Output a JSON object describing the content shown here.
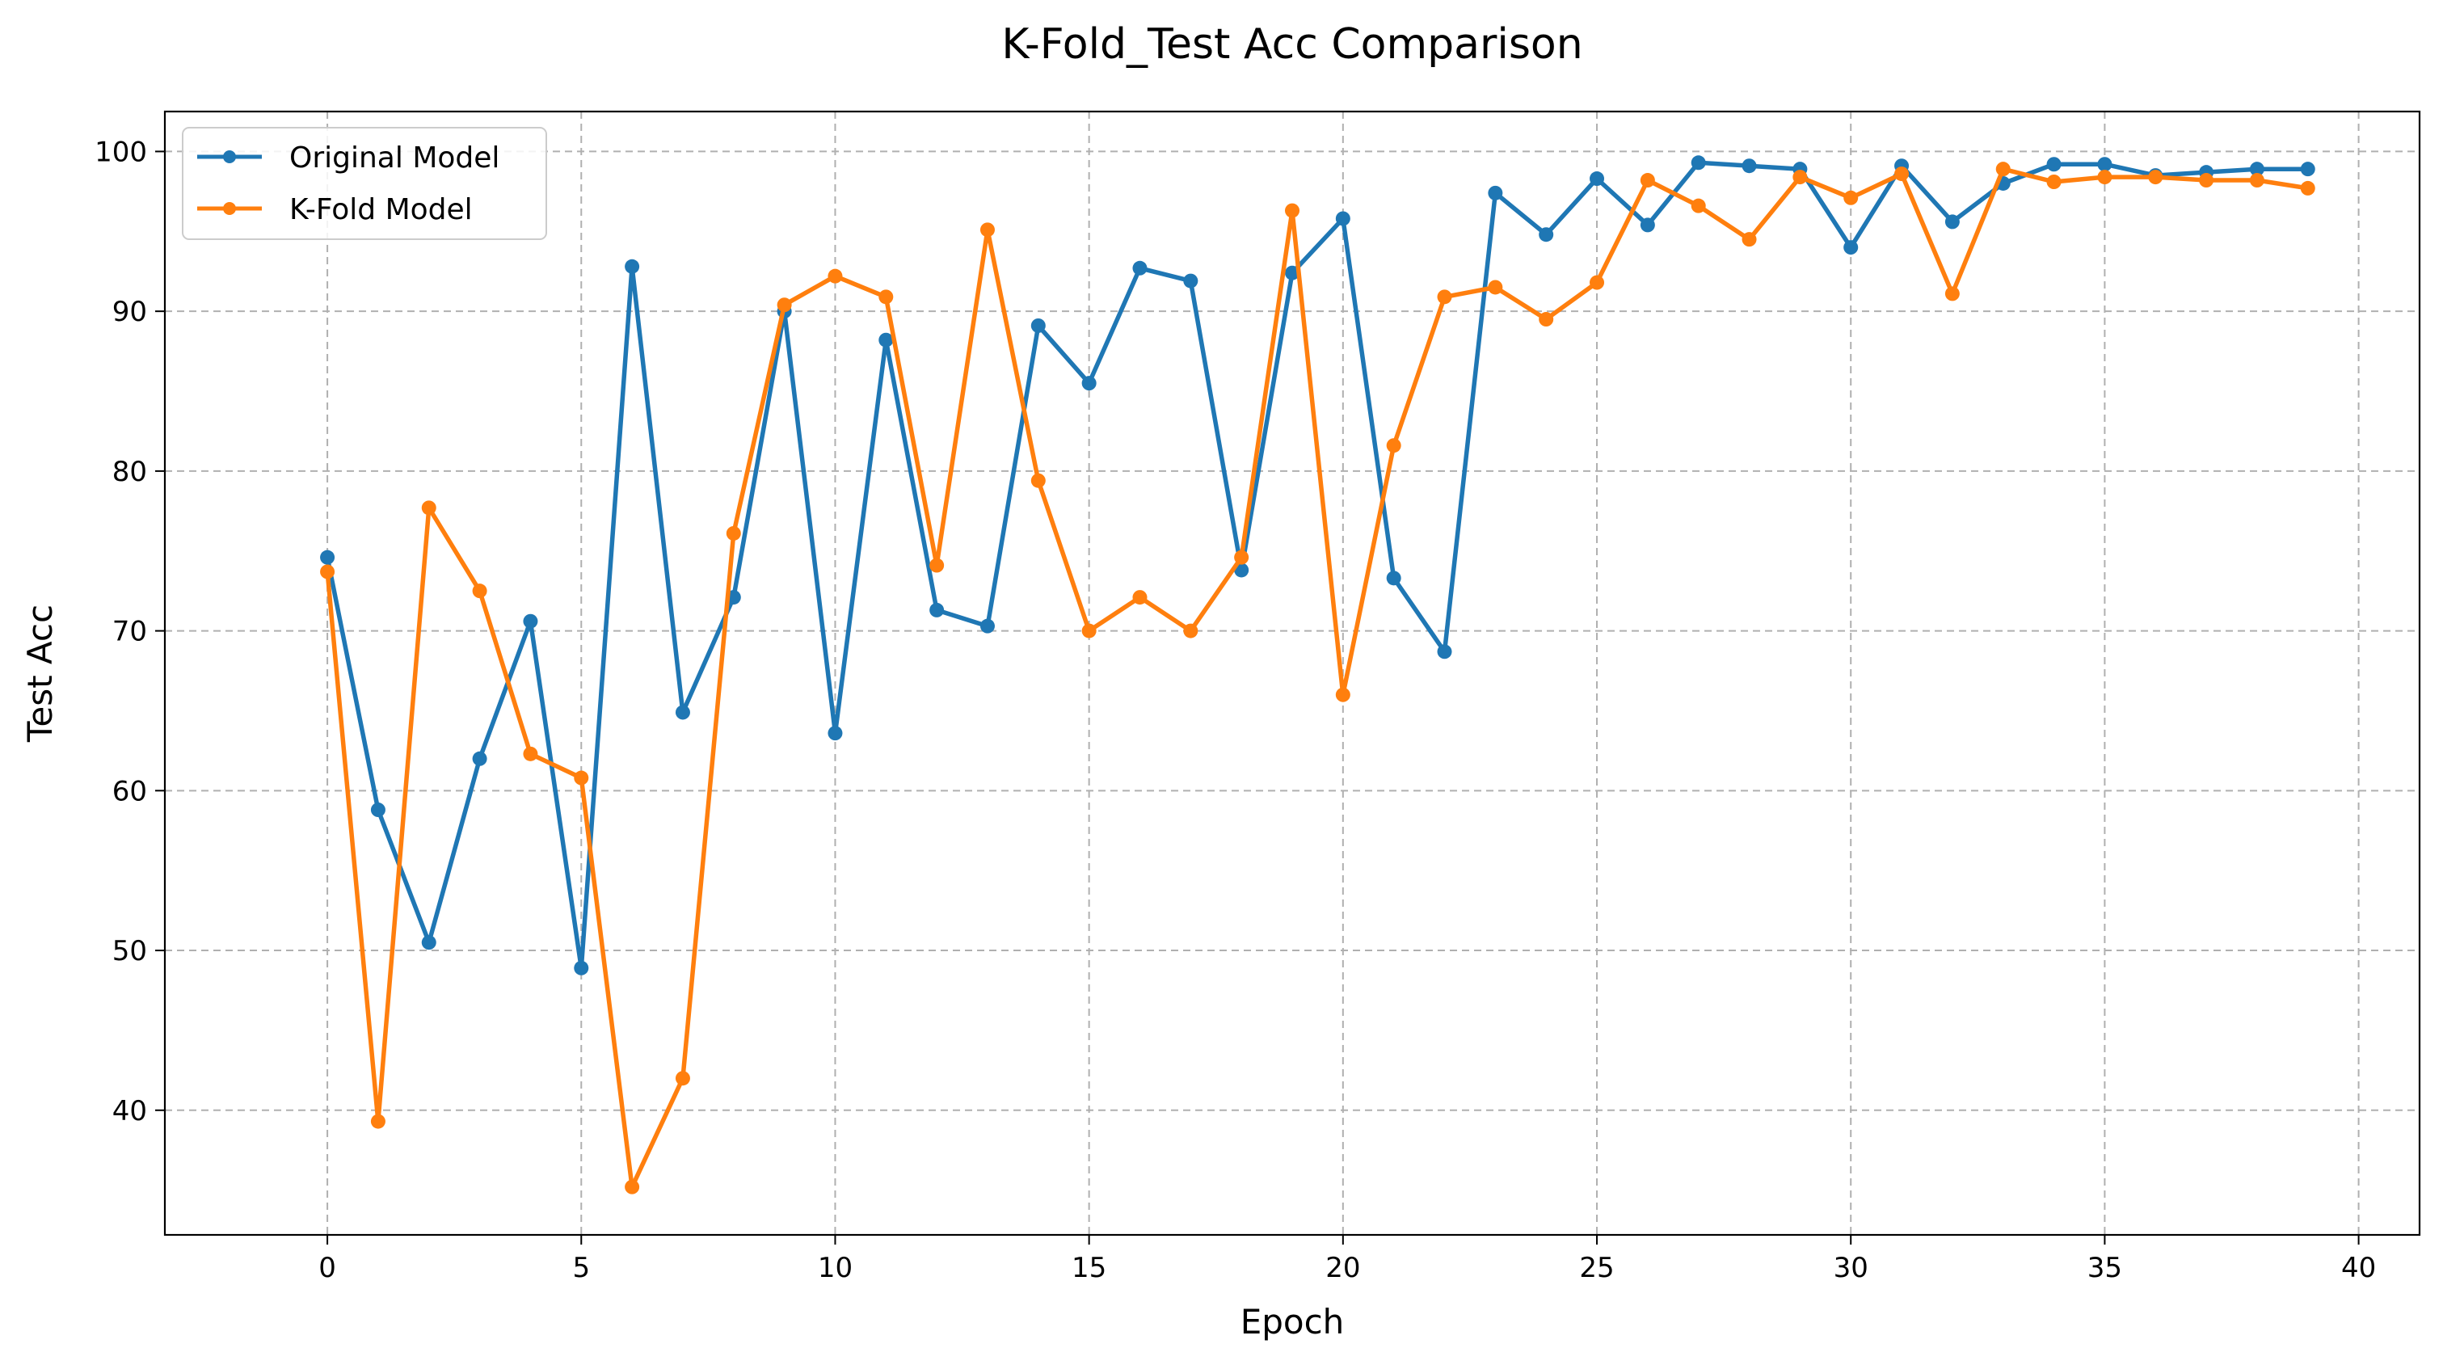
{
  "chart_data": {
    "type": "line",
    "title": "K-Fold_Test Acc Comparison",
    "xlabel": "Epoch",
    "ylabel": "Test Acc",
    "xlim": [
      -3.2,
      41.2
    ],
    "ylim": [
      32.2,
      102.5
    ],
    "xticks": [
      0,
      5,
      10,
      15,
      20,
      25,
      30,
      35,
      40
    ],
    "yticks": [
      40,
      50,
      60,
      70,
      80,
      90,
      100
    ],
    "grid": true,
    "grid_style": "dashed",
    "legend_position": "upper-left",
    "x": [
      0,
      1,
      2,
      3,
      4,
      5,
      6,
      7,
      8,
      9,
      10,
      11,
      12,
      13,
      14,
      15,
      16,
      17,
      18,
      19,
      20,
      21,
      22,
      23,
      24,
      25,
      26,
      27,
      28,
      29,
      30,
      31,
      32,
      33,
      34,
      35,
      36,
      37,
      38,
      39
    ],
    "series": [
      {
        "name": "Original Model",
        "color": "#1f77b4",
        "values": [
          74.6,
          58.8,
          50.5,
          62.0,
          70.6,
          48.9,
          92.8,
          64.9,
          72.1,
          90.0,
          63.6,
          88.2,
          71.3,
          70.3,
          89.1,
          85.5,
          92.7,
          91.9,
          73.8,
          92.4,
          95.8,
          73.3,
          68.7,
          97.4,
          94.8,
          98.3,
          95.4,
          99.3,
          99.1,
          98.9,
          94.0,
          99.1,
          95.6,
          98.0,
          99.2,
          99.2,
          98.5,
          98.7,
          98.9,
          98.9
        ]
      },
      {
        "name": "K-Fold Model",
        "color": "#ff7f0e",
        "values": [
          73.7,
          39.3,
          77.7,
          72.5,
          62.3,
          60.8,
          35.2,
          42.0,
          76.1,
          90.4,
          92.2,
          90.9,
          74.1,
          95.1,
          79.4,
          70.0,
          72.1,
          70.0,
          74.6,
          96.3,
          66.0,
          81.6,
          90.9,
          91.5,
          89.5,
          91.8,
          98.2,
          96.6,
          94.5,
          98.4,
          97.1,
          98.6,
          91.1,
          98.9,
          98.1,
          98.4,
          98.4,
          98.2,
          98.2,
          97.7
        ]
      }
    ]
  }
}
